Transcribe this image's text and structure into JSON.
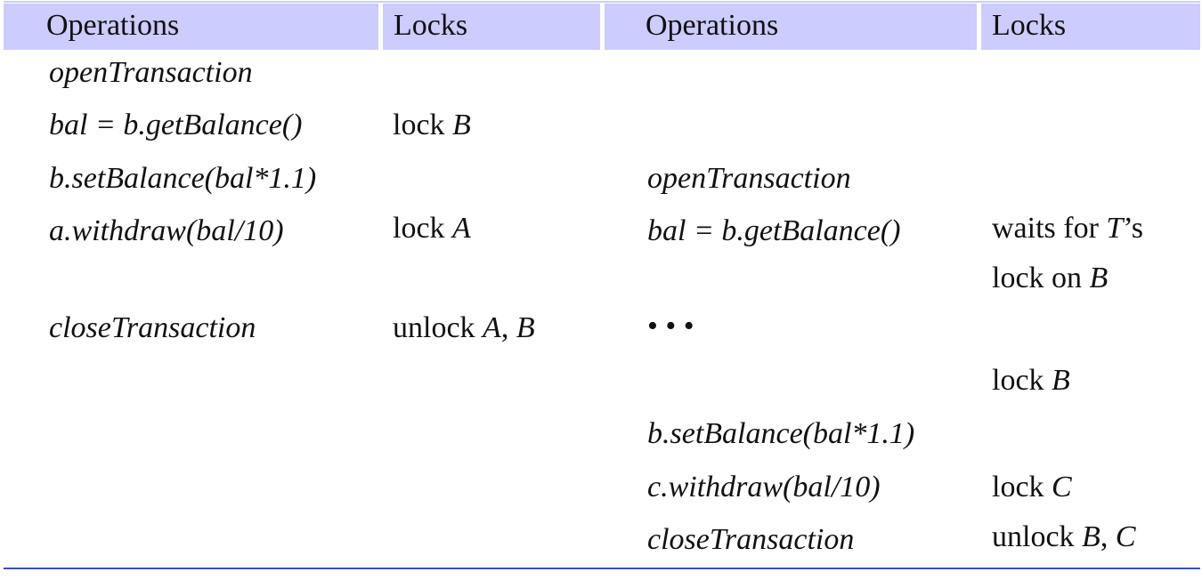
{
  "header": {
    "col1": "Operations",
    "col2": "Locks",
    "col3": "Operations",
    "col4": "Locks"
  },
  "left": {
    "r1_op": "openTransaction",
    "r2_op": "bal =  b.getBalance()",
    "r2_lock_text": "lock ",
    "r2_lock_var": "B",
    "r3_op": "b.setBalance(bal*1.1)",
    "r4_op": "a.withdraw(bal/10)",
    "r4_lock_text": "lock ",
    "r4_lock_var": "A",
    "r6_op": "closeTransaction",
    "r6_lock_text": "unlock ",
    "r6_lock_var1": "A",
    "r6_lock_sep": ", ",
    "r6_lock_var2": "B"
  },
  "right": {
    "r3_op": "openTransaction",
    "r4_op": "bal =  b.getBalance()",
    "r4_lock_text": "waits for ",
    "r4_lock_var": "T",
    "r4_lock_suffix": "’s",
    "r5_lock_text": "lock on ",
    "r5_lock_var": "B",
    "r6_op": "• • •",
    "r7_lock_text": "lock ",
    "r7_lock_var": "B",
    "r8_op": "b.setBalance(bal*1.1)",
    "r9_op": "c.withdraw(bal/10)",
    "r9_lock_text": "lock ",
    "r9_lock_var": "C",
    "r10_op": "closeTransaction",
    "r10_lock_text": "unlock ",
    "r10_lock_var1": "B",
    "r10_lock_sep": ", ",
    "r10_lock_var2": "C"
  }
}
